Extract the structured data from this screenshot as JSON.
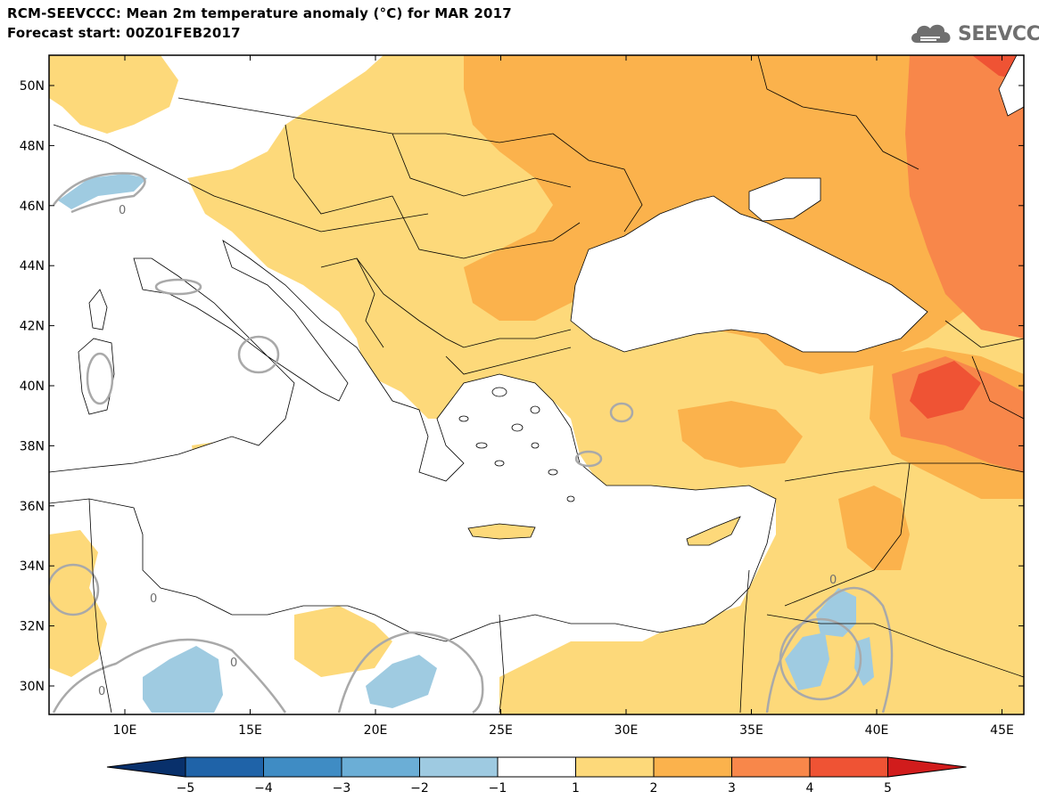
{
  "header": {
    "title_line1": "RCM-SEEVCCC: Mean 2m temperature anomaly (°C) for MAR 2017",
    "title_line2": "Forecast start: 00Z01FEB2017",
    "logo_text": "SEEVCCC"
  },
  "map": {
    "lat_labels": [
      "50N",
      "48N",
      "46N",
      "44N",
      "42N",
      "40N",
      "38N",
      "36N",
      "34N",
      "32N",
      "30N"
    ],
    "lon_labels": [
      "10E",
      "15E",
      "20E",
      "25E",
      "30E",
      "35E",
      "40E",
      "45E"
    ],
    "contour_label": "0",
    "colors": {
      "sea": "#ffffff",
      "anom_1_2": "#fdd97a",
      "anom_2_3": "#fbb24c",
      "anom_3_4": "#f8874a",
      "anom_4_5": "#ef5334",
      "anom_5_plus": "#d11c1c",
      "anom_neg_1_2": "#9fcbe1",
      "contour_zero": "#a9a9a9"
    }
  },
  "colorbar": {
    "tick_labels": [
      "−5",
      "−4",
      "−3",
      "−2",
      "−1",
      "1",
      "2",
      "3",
      "4",
      "5"
    ],
    "colors": [
      "#08306b",
      "#1f63a8",
      "#3f8cc4",
      "#6baed6",
      "#9ecae1",
      "#ffffff",
      "#fdd97a",
      "#fbb24c",
      "#f8874a",
      "#ef5334",
      "#d11c1c"
    ]
  }
}
